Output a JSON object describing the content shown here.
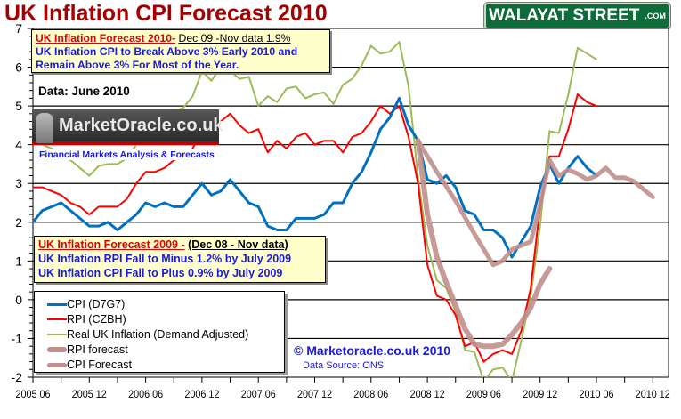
{
  "title": "UK Inflation CPI Forecast 2010",
  "brand": {
    "name": "WALAYAT STREET",
    "suffix": ".COM"
  },
  "annotation_2010": {
    "heading": "UK Inflation Forecast 2010-",
    "subheading": "Dec 09 -Nov data 1.9%",
    "line1": "UK Inflation CPI to Break Above 3% Early 2010 and",
    "line2": "Remain Above 3% For Most of the Year."
  },
  "data_label": "Data:  June 2010",
  "logo": {
    "name": "MarketOracle.co.uk",
    "tagline": "Financial Markets Analysis & Forecasts"
  },
  "annotation_2009": {
    "heading": "UK Inflation Forecast 2009 -",
    "subheading": "(Dec 08 - Nov data)",
    "line1": "UK Inflation RPI Fall to  Minus 1.2% by July 2009",
    "line2": "UK Inflation CPI Fall to Plus 0.9% by July 2009"
  },
  "copyright": "© Marketoracle.co.uk  2010",
  "source": "Data Source: ONS",
  "colors": {
    "cpi": "#0070c0",
    "rpi": "#ff0000",
    "real": "#9bbb59",
    "forecast": "#c0908c",
    "title": "#a50000"
  },
  "chart_data": {
    "type": "line",
    "title": "UK Inflation CPI Forecast 2010",
    "x_start": "2005-06",
    "x_unit": "months since 2005-06",
    "xlim": [
      0,
      68
    ],
    "ylim": [
      -2,
      7
    ],
    "yticks": [
      "-2",
      "-1",
      "0",
      "1",
      "2",
      "3",
      "4",
      "5",
      "6",
      "7"
    ],
    "xticks": [
      {
        "label": "2005 06",
        "month": 0
      },
      {
        "label": "2005 12",
        "month": 6
      },
      {
        "label": "2006 06",
        "month": 12
      },
      {
        "label": "2006 12",
        "month": 18
      },
      {
        "label": "2007 06",
        "month": 24
      },
      {
        "label": "2007 12",
        "month": 30
      },
      {
        "label": "2008 06",
        "month": 36
      },
      {
        "label": "2008 12",
        "month": 42
      },
      {
        "label": "2009 06",
        "month": 48
      },
      {
        "label": "2009 12",
        "month": 54
      },
      {
        "label": "2010 06",
        "month": 60
      },
      {
        "label": "2010 12",
        "month": 66
      }
    ],
    "grid": true,
    "legend_position": "bottom-left",
    "series": [
      {
        "key": "cpi",
        "name": "CPI (D7G7)",
        "width": 3,
        "values": [
          2.0,
          2.3,
          2.4,
          2.5,
          2.3,
          2.1,
          1.9,
          1.9,
          2.0,
          1.8,
          2.0,
          2.2,
          2.5,
          2.4,
          2.5,
          2.4,
          2.4,
          2.7,
          3.0,
          2.7,
          2.8,
          3.1,
          2.8,
          2.5,
          2.4,
          1.9,
          1.8,
          1.8,
          2.1,
          2.1,
          2.1,
          2.2,
          2.5,
          2.5,
          3.0,
          3.3,
          3.8,
          4.4,
          4.7,
          5.2,
          4.5,
          4.1,
          3.1,
          3.0,
          3.2,
          2.9,
          2.3,
          2.2,
          1.8,
          1.8,
          1.6,
          1.1,
          1.5,
          1.9,
          2.9,
          3.5,
          3.0,
          3.4,
          3.7,
          3.4,
          3.2
        ]
      },
      {
        "key": "rpi",
        "name": "RPI (CZBH)",
        "width": 2,
        "values": [
          2.9,
          2.9,
          2.8,
          2.7,
          2.5,
          2.4,
          2.2,
          2.4,
          2.4,
          2.4,
          2.6,
          3.0,
          3.3,
          3.3,
          3.4,
          3.6,
          3.7,
          3.9,
          4.4,
          4.2,
          4.6,
          4.8,
          4.5,
          4.3,
          4.4,
          3.8,
          4.1,
          3.9,
          4.2,
          4.3,
          4.0,
          4.1,
          4.1,
          3.8,
          4.2,
          4.3,
          4.6,
          5.0,
          4.8,
          5.0,
          4.2,
          3.0,
          0.9,
          0.1,
          0.0,
          -0.4,
          -1.2,
          -1.1,
          -1.6,
          -1.4,
          -1.3,
          -1.4,
          -0.8,
          0.3,
          2.4,
          3.7,
          3.7,
          4.4,
          5.3,
          5.1,
          5.0
        ]
      },
      {
        "key": "real",
        "name": "Real UK Inflation (Demand Adjusted)",
        "width": 2,
        "values": [
          4.2,
          4.0,
          3.9,
          3.7,
          3.6,
          3.4,
          3.2,
          3.45,
          3.5,
          3.5,
          3.65,
          4.0,
          4.3,
          4.5,
          4.7,
          4.85,
          4.95,
          5.25,
          5.9,
          5.65,
          6.0,
          5.9,
          5.7,
          5.75,
          5.0,
          5.25,
          5.1,
          5.45,
          5.5,
          5.2,
          5.3,
          5.35,
          5.05,
          5.55,
          5.7,
          6.05,
          6.55,
          6.35,
          6.4,
          6.65,
          5.5,
          3.15,
          1.4,
          0.5,
          0.3,
          -0.3,
          -1.3,
          -1.35,
          -2.1,
          -1.8,
          -1.75,
          -2.1,
          -1.05,
          0.1,
          1.9,
          4.35,
          4.3,
          5.3,
          6.5,
          6.35,
          6.2
        ]
      },
      {
        "key": "rpi_forecast",
        "name": "RPI forecast",
        "width": 6,
        "points": [
          [
            41,
            4.1
          ],
          [
            42,
            2.2
          ],
          [
            43,
            1.1
          ],
          [
            44,
            0.45
          ],
          [
            45,
            -0.15
          ],
          [
            46,
            -0.75
          ],
          [
            47,
            -1.15
          ],
          [
            48,
            -1.2
          ],
          [
            49,
            -1.2
          ],
          [
            50,
            -1.15
          ],
          [
            51,
            -0.9
          ],
          [
            52,
            -0.6
          ],
          [
            53,
            -0.2
          ],
          [
            54,
            0.4
          ],
          [
            55,
            0.8
          ]
        ]
      },
      {
        "key": "cpi_forecast",
        "name": "CPI Forecast",
        "width": 5,
        "points": [
          [
            41,
            4.1
          ],
          [
            43,
            3.3
          ],
          [
            45,
            2.55
          ],
          [
            47,
            1.7
          ],
          [
            49,
            0.9
          ],
          [
            50,
            1.0
          ],
          [
            51,
            1.3
          ],
          [
            53,
            1.5
          ],
          [
            54,
            2.45
          ],
          [
            55,
            3.6
          ],
          [
            56,
            3.2
          ],
          [
            57,
            3.35
          ],
          [
            58,
            3.25
          ],
          [
            59,
            3.1
          ],
          [
            60,
            3.2
          ],
          [
            61,
            3.4
          ],
          [
            62,
            3.15
          ],
          [
            63,
            3.15
          ],
          [
            64,
            3.05
          ],
          [
            65,
            2.85
          ],
          [
            66,
            2.65
          ]
        ]
      }
    ]
  }
}
